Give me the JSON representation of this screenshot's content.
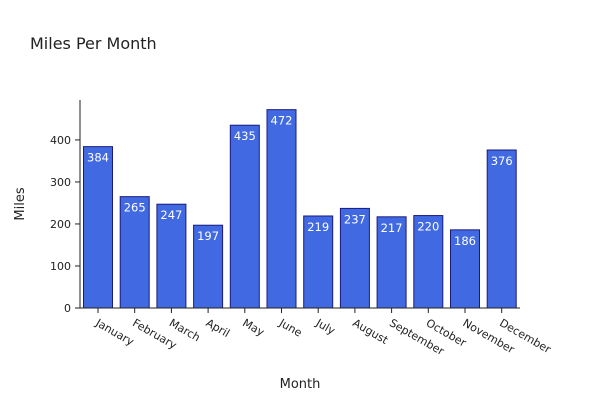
{
  "chart_data": {
    "type": "bar",
    "title": "Miles Per Month",
    "xlabel": "Month",
    "ylabel": "Miles",
    "categories": [
      "January",
      "February",
      "March",
      "April",
      "May",
      "June",
      "July",
      "August",
      "September",
      "October",
      "November",
      "December"
    ],
    "values": [
      384,
      265,
      247,
      197,
      435,
      472,
      219,
      237,
      217,
      220,
      186,
      376
    ],
    "ylim": [
      0,
      495
    ],
    "yticks": [
      0,
      100,
      200,
      300,
      400
    ],
    "grid": false,
    "bar_color": "#4169e1",
    "bar_edge_color": "#1a1a80",
    "label_color": "#ffffff"
  }
}
